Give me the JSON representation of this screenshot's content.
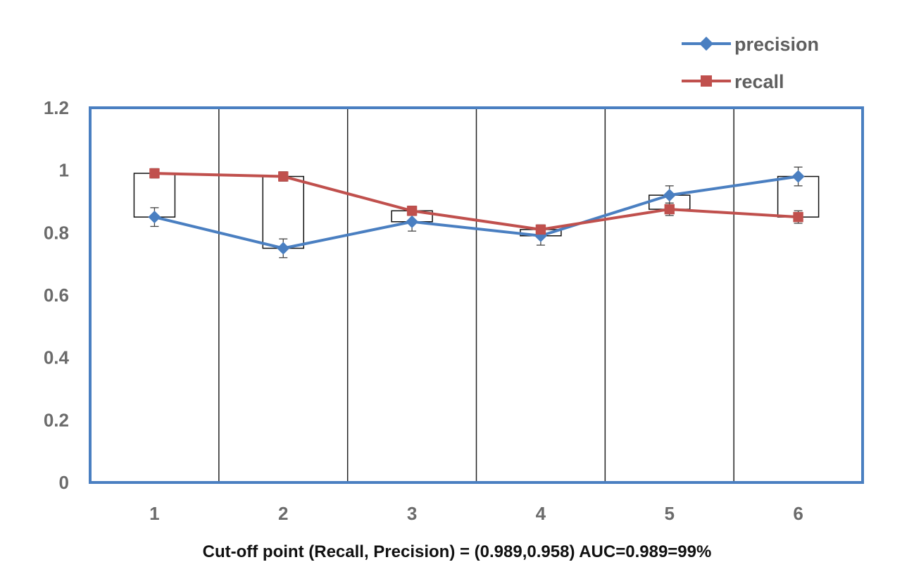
{
  "chart_data": {
    "type": "line",
    "categories": [
      "1",
      "2",
      "3",
      "4",
      "5",
      "6"
    ],
    "series": [
      {
        "name": "precision",
        "values": [
          0.85,
          0.75,
          0.835,
          0.79,
          0.92,
          0.98
        ],
        "error": [
          0.03,
          0.03,
          0.03,
          0.03,
          0.03,
          0.03
        ],
        "color": "#4a7fc1",
        "marker": "diamond"
      },
      {
        "name": "recall",
        "values": [
          0.99,
          0.98,
          0.87,
          0.81,
          0.875,
          0.85
        ],
        "error": [
          0.015,
          0.015,
          0.015,
          0.015,
          0.02,
          0.02
        ],
        "color": "#c0504d",
        "marker": "square"
      }
    ],
    "boxes": [
      {
        "low": 0.85,
        "high": 0.99
      },
      {
        "low": 0.75,
        "high": 0.98
      },
      {
        "low": 0.835,
        "high": 0.87
      },
      {
        "low": 0.79,
        "high": 0.81
      },
      {
        "low": 0.875,
        "high": 0.92
      },
      {
        "low": 0.85,
        "high": 0.98
      }
    ],
    "ylim": [
      0,
      1.2
    ],
    "yticks": [
      "0",
      "0.2",
      "0.4",
      "0.6",
      "0.8",
      "1",
      "1.2"
    ],
    "ytick_values": [
      0,
      0.2,
      0.4,
      0.6,
      0.8,
      1.0,
      1.2
    ],
    "legend_position": "top-right",
    "frame_color": "#4a7fc1",
    "grid": "vertical category separators",
    "caption": "Cut-off point (Recall, Precision) = (0.989,0.958) AUC=0.989=99%"
  }
}
